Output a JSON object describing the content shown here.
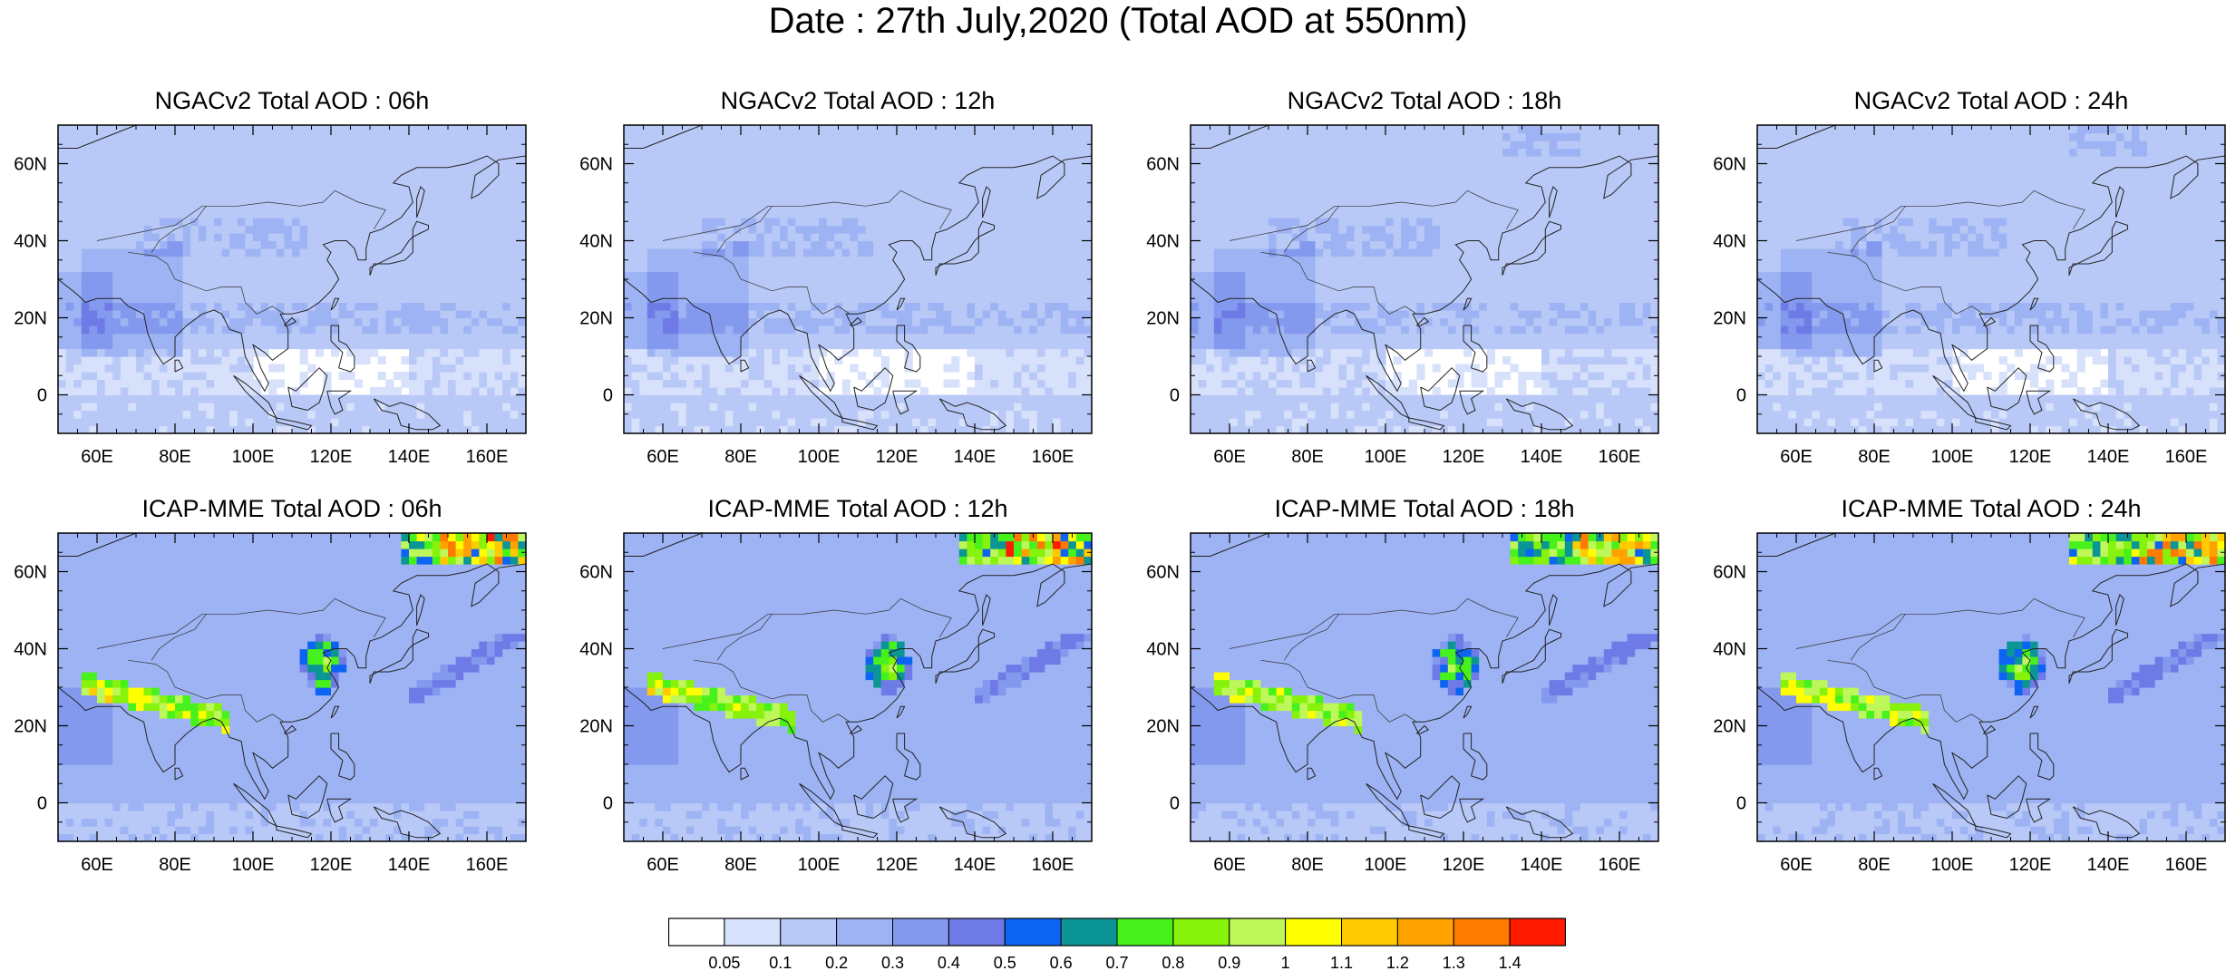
{
  "title": "Date : 27th July,2020 (Total AOD at 550nm)",
  "map": {
    "lon_range": [
      50,
      170
    ],
    "lat_range": [
      -10,
      70
    ],
    "lon_ticks": [
      "60E",
      "80E",
      "100E",
      "120E",
      "140E",
      "160E"
    ],
    "lat_ticks": [
      "60N",
      "40N",
      "20N",
      "0"
    ]
  },
  "panels": [
    {
      "title": "NGACv2 Total AOD : 06h",
      "model": "NGACv2",
      "hour": "06h"
    },
    {
      "title": "NGACv2 Total AOD : 12h",
      "model": "NGACv2",
      "hour": "12h"
    },
    {
      "title": "NGACv2 Total AOD : 18h",
      "model": "NGACv2",
      "hour": "18h"
    },
    {
      "title": "NGACv2 Total AOD : 24h",
      "model": "NGACv2",
      "hour": "24h"
    },
    {
      "title": "ICAP-MME Total AOD : 06h",
      "model": "ICAP-MME",
      "hour": "06h"
    },
    {
      "title": "ICAP-MME Total AOD : 12h",
      "model": "ICAP-MME",
      "hour": "12h"
    },
    {
      "title": "ICAP-MME Total AOD : 18h",
      "model": "ICAP-MME",
      "hour": "18h"
    },
    {
      "title": "ICAP-MME Total AOD : 24h",
      "model": "ICAP-MME",
      "hour": "24h"
    }
  ],
  "colorbar": {
    "labels": [
      "0.05",
      "0.1",
      "0.2",
      "0.3",
      "0.4",
      "0.5",
      "0.6",
      "0.7",
      "0.8",
      "0.9",
      "1",
      "1.1",
      "1.2",
      "1.3",
      "1.4"
    ],
    "colors": [
      "#ffffff",
      "#d7e1fb",
      "#b9c9f7",
      "#9db3f3",
      "#8399ee",
      "#6e7ae6",
      "#0d63f2",
      "#0c9595",
      "#47f21c",
      "#87f20c",
      "#bef75a",
      "#ffff00",
      "#ffcb00",
      "#ffa200",
      "#ff7a00",
      "#ff1a00"
    ]
  }
}
